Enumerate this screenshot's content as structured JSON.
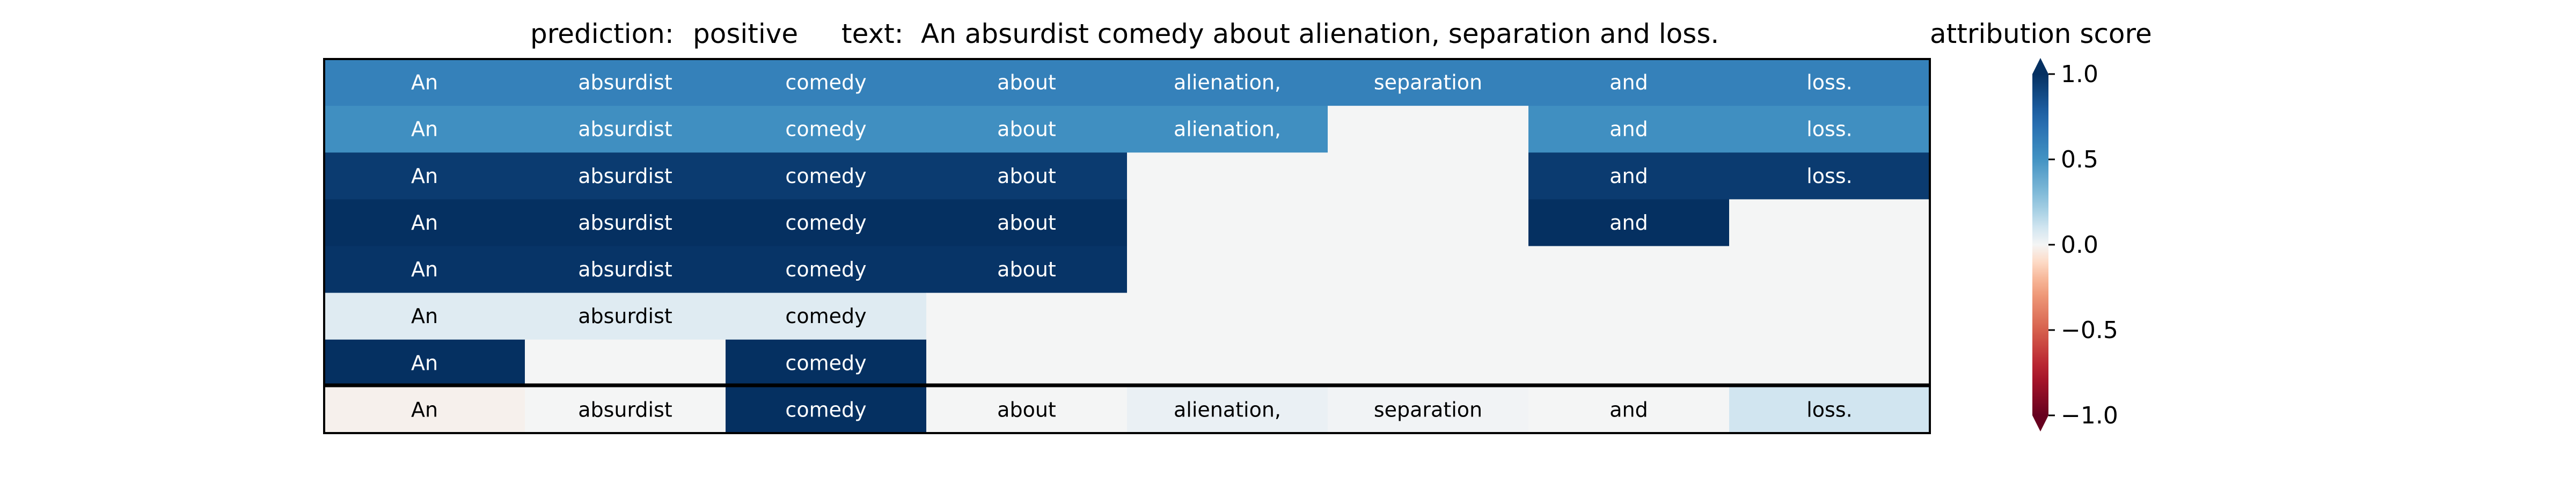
{
  "chart_data": {
    "type": "heatmap",
    "title": {
      "prediction_label": "prediction:",
      "prediction_value": "positive",
      "text_label": "text:",
      "text_value": "An absurdist comedy about alienation, separation and loss."
    },
    "colorbar": {
      "title": "attribution score",
      "ticks": [
        "1.0",
        "0.5",
        "0.0",
        "−0.5",
        "−1.0"
      ],
      "range": [
        -1.0,
        1.0
      ],
      "colormap": "RdBu"
    },
    "tokens": [
      "An",
      "absurdist",
      "comedy",
      "about",
      "alienation,",
      "separation",
      "and",
      "loss."
    ],
    "rows": [
      {
        "tokens": [
          "An",
          "absurdist",
          "comedy",
          "about",
          "alienation,",
          "separation",
          "and",
          "loss."
        ],
        "values": [
          0.6,
          0.6,
          0.6,
          0.6,
          0.6,
          0.6,
          0.6,
          0.6
        ]
      },
      {
        "tokens": [
          "An",
          "absurdist",
          "comedy",
          "about",
          "alienation,",
          "",
          "and",
          "loss."
        ],
        "values": [
          0.52,
          0.52,
          0.52,
          0.52,
          0.52,
          0.0,
          0.52,
          0.52
        ]
      },
      {
        "tokens": [
          "An",
          "absurdist",
          "comedy",
          "about",
          "",
          "",
          "and",
          "loss."
        ],
        "values": [
          0.95,
          0.95,
          0.95,
          0.95,
          0.0,
          0.0,
          0.95,
          0.95
        ]
      },
      {
        "tokens": [
          "An",
          "absurdist",
          "comedy",
          "about",
          "",
          "",
          "and",
          ""
        ],
        "values": [
          1.0,
          1.0,
          1.0,
          1.0,
          0.0,
          0.0,
          1.0,
          0.0
        ]
      },
      {
        "tokens": [
          "An",
          "absurdist",
          "comedy",
          "about",
          "",
          "",
          "",
          ""
        ],
        "values": [
          0.98,
          0.98,
          0.98,
          0.98,
          0.0,
          0.0,
          0.0,
          0.0
        ]
      },
      {
        "tokens": [
          "An",
          "absurdist",
          "comedy",
          "",
          "",
          "",
          "",
          ""
        ],
        "values": [
          0.06,
          0.06,
          0.06,
          0.0,
          0.0,
          0.0,
          0.0,
          0.0
        ]
      },
      {
        "tokens": [
          "An",
          "",
          "comedy",
          "",
          "",
          "",
          "",
          ""
        ],
        "values": [
          1.0,
          0.0,
          1.0,
          0.0,
          0.0,
          0.0,
          0.0,
          0.0
        ]
      },
      {
        "tokens": [
          "An",
          "absurdist",
          "comedy",
          "about",
          "alienation,",
          "separation",
          "and",
          "loss."
        ],
        "values": [
          -0.02,
          0.0,
          1.0,
          0.0,
          0.03,
          0.01,
          0.0,
          0.1
        ]
      }
    ]
  }
}
